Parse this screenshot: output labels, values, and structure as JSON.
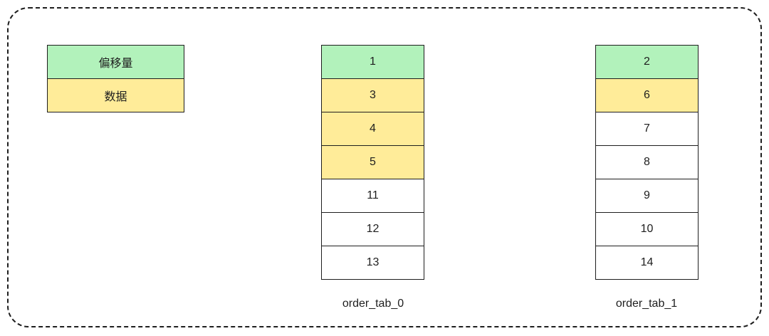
{
  "legend": [
    {
      "text": "偏移量",
      "kind": "offset"
    },
    {
      "text": "数据",
      "kind": "data"
    }
  ],
  "colors": {
    "offset": "#b2f2bb",
    "data": "#ffec99",
    "plain": "#ffffff"
  },
  "tables": [
    {
      "name": "order_tab_0",
      "cells": [
        {
          "v": "1",
          "kind": "offset"
        },
        {
          "v": "3",
          "kind": "data"
        },
        {
          "v": "4",
          "kind": "data"
        },
        {
          "v": "5",
          "kind": "data"
        },
        {
          "v": "11",
          "kind": "plain"
        },
        {
          "v": "12",
          "kind": "plain"
        },
        {
          "v": "13",
          "kind": "plain"
        }
      ]
    },
    {
      "name": "order_tab_1",
      "cells": [
        {
          "v": "2",
          "kind": "offset"
        },
        {
          "v": "6",
          "kind": "data"
        },
        {
          "v": "7",
          "kind": "plain"
        },
        {
          "v": "8",
          "kind": "plain"
        },
        {
          "v": "9",
          "kind": "plain"
        },
        {
          "v": "10",
          "kind": "plain"
        },
        {
          "v": "14",
          "kind": "plain"
        }
      ]
    }
  ]
}
